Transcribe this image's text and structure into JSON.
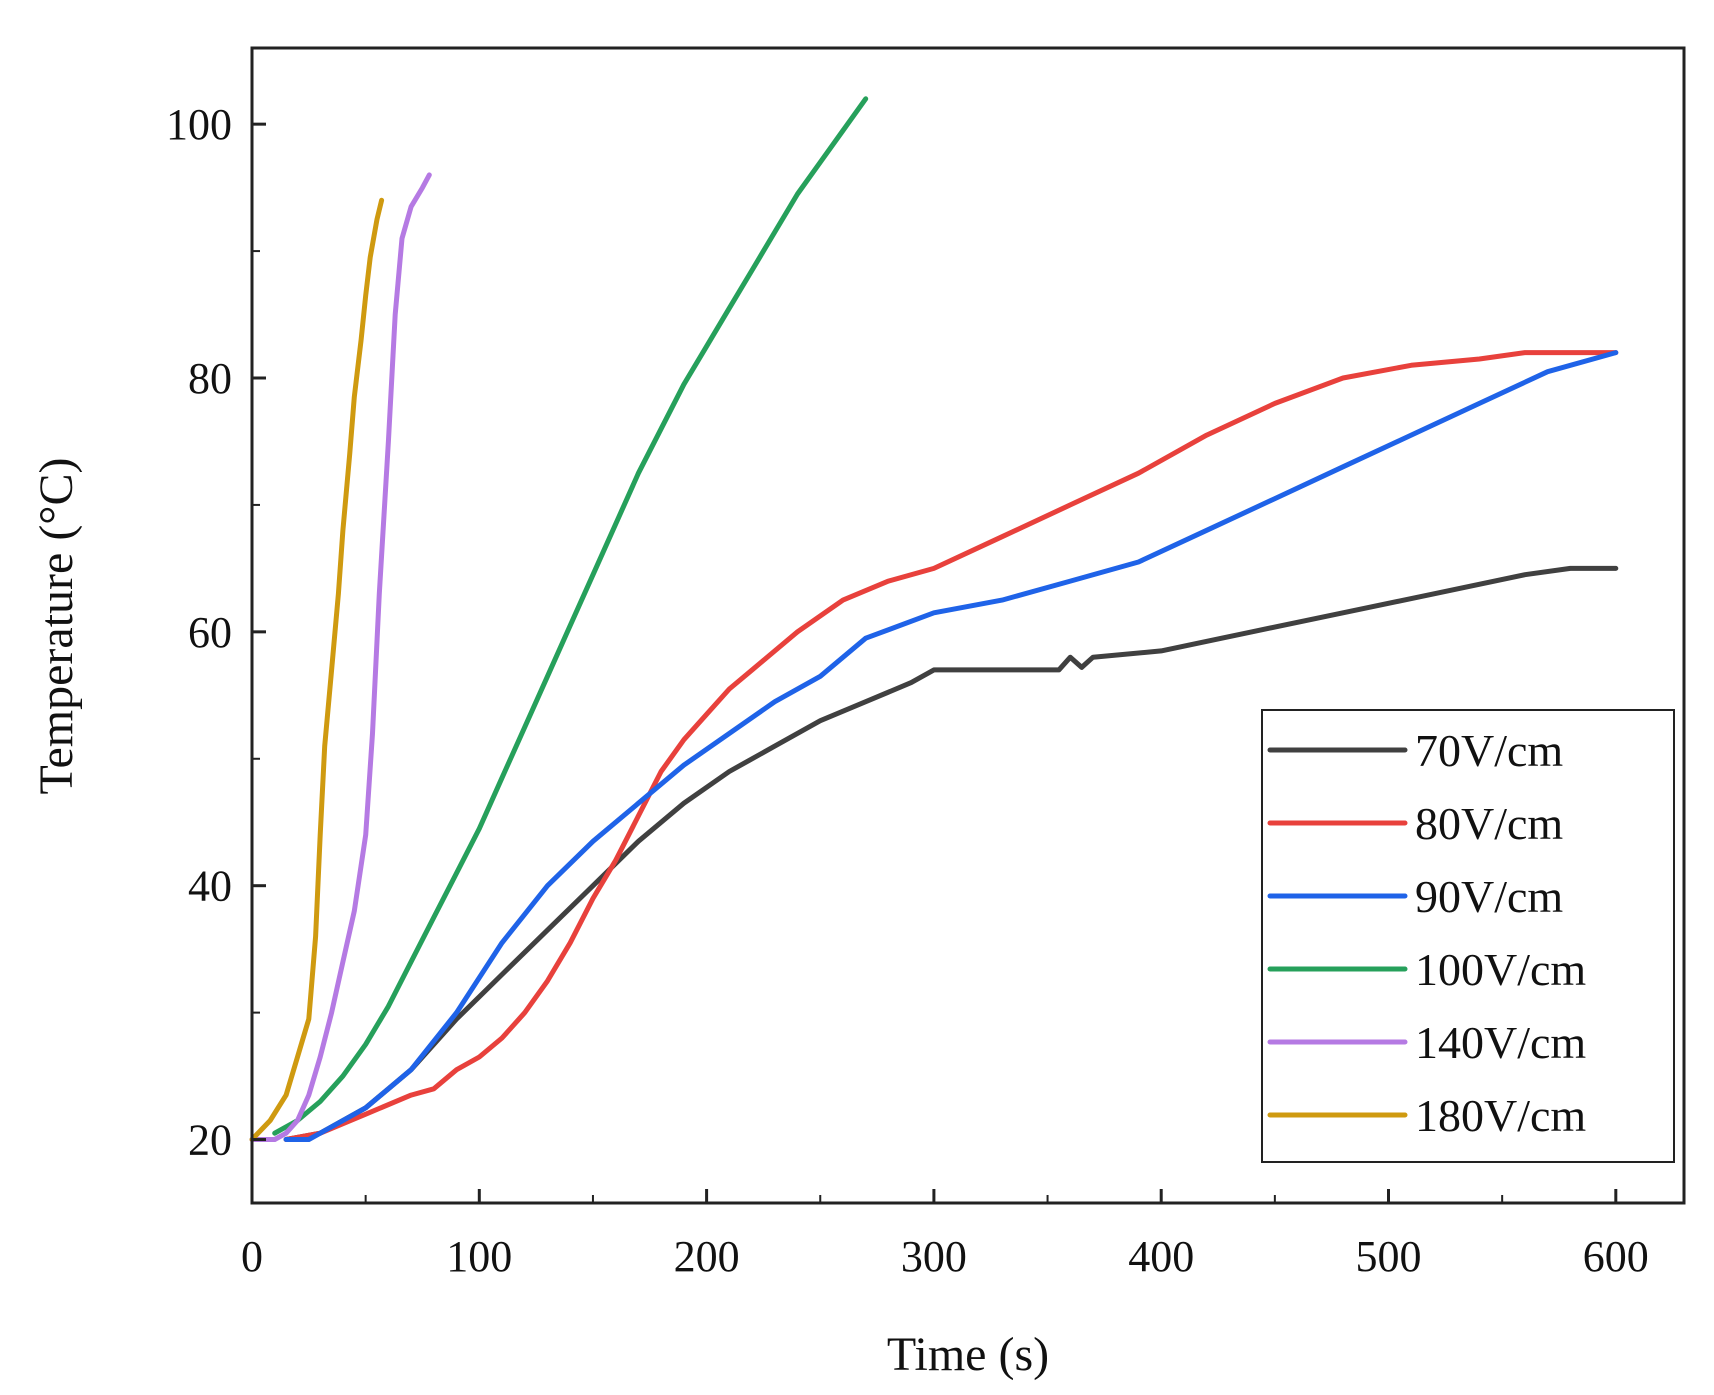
{
  "chart_data": {
    "type": "line",
    "title": "",
    "xlabel": "Time (s)",
    "ylabel": "Temperature (°C)",
    "xlim": [
      0,
      630
    ],
    "ylim": [
      15,
      106
    ],
    "xticks": [
      0,
      100,
      200,
      300,
      400,
      500,
      600
    ],
    "xtick_labels": [
      "0",
      "100",
      "200",
      "300",
      "400",
      "500",
      "600"
    ],
    "yticks": [
      20,
      40,
      60,
      80,
      100
    ],
    "ytick_labels": [
      "20",
      "40",
      "60",
      "80",
      "100"
    ],
    "x_minor_step": 50,
    "y_minor_step": 10,
    "grid": false,
    "legend_position": "lower-right",
    "series": [
      {
        "name": "70V/cm",
        "color": "#404040",
        "x": [
          15,
          30,
          50,
          70,
          90,
          110,
          130,
          150,
          170,
          190,
          210,
          230,
          250,
          270,
          290,
          300,
          330,
          355,
          360,
          365,
          370,
          400,
          440,
          480,
          520,
          560,
          580,
          600
        ],
        "y": [
          20,
          20.5,
          22.5,
          25.5,
          29.5,
          33,
          36.5,
          40,
          43.5,
          46.5,
          49,
          51,
          53,
          54.5,
          56,
          57,
          57,
          57,
          58,
          57.2,
          58,
          58.5,
          60,
          61.5,
          63,
          64.5,
          65,
          65
        ]
      },
      {
        "name": "80V/cm",
        "color": "#e8413c",
        "x": [
          15,
          30,
          50,
          70,
          80,
          90,
          100,
          110,
          120,
          130,
          140,
          150,
          160,
          170,
          180,
          190,
          200,
          210,
          220,
          240,
          260,
          280,
          300,
          330,
          360,
          390,
          420,
          450,
          480,
          510,
          540,
          560,
          580,
          600
        ],
        "y": [
          20,
          20.5,
          22,
          23.5,
          24,
          25.5,
          26.5,
          28,
          30,
          32.5,
          35.5,
          39,
          42,
          45.5,
          49,
          51.5,
          53.5,
          55.5,
          57,
          60,
          62.5,
          64,
          65,
          67.5,
          70,
          72.5,
          75.5,
          78,
          80,
          81,
          81.5,
          82,
          82,
          82
        ]
      },
      {
        "name": "90V/cm",
        "color": "#1f63e8",
        "x": [
          15,
          25,
          30,
          50,
          70,
          90,
          110,
          130,
          150,
          170,
          190,
          210,
          230,
          250,
          270,
          300,
          330,
          360,
          390,
          420,
          450,
          480,
          510,
          540,
          570,
          600
        ],
        "y": [
          20,
          20,
          20.5,
          22.5,
          25.5,
          30,
          35.5,
          40,
          43.5,
          46.5,
          49.5,
          52,
          54.5,
          56.5,
          59.5,
          61.5,
          62.5,
          64,
          65.5,
          68,
          70.5,
          73,
          75.5,
          78,
          80.5,
          82
        ]
      },
      {
        "name": "100V/cm",
        "color": "#26a05b",
        "x": [
          10,
          20,
          30,
          40,
          50,
          60,
          70,
          80,
          90,
          100,
          110,
          120,
          130,
          140,
          150,
          160,
          170,
          180,
          190,
          200,
          210,
          220,
          230,
          240,
          250,
          260,
          270
        ],
        "y": [
          20.5,
          21.5,
          23,
          25,
          27.5,
          30.5,
          34,
          37.5,
          41,
          44.5,
          48.5,
          52.5,
          56.5,
          60.5,
          64.5,
          68.5,
          72.5,
          76,
          79.5,
          82.5,
          85.5,
          88.5,
          91.5,
          94.5,
          97,
          99.5,
          102
        ]
      },
      {
        "name": "140V/cm",
        "color": "#b57ae3",
        "x": [
          0,
          10,
          15,
          20,
          25,
          30,
          35,
          40,
          45,
          50,
          53,
          56,
          60,
          63,
          66,
          70,
          75,
          78
        ],
        "y": [
          20,
          20,
          20.5,
          21.5,
          23.5,
          26.5,
          30,
          34,
          38,
          44,
          52,
          63,
          75,
          85,
          91,
          93.5,
          95,
          96
        ]
      },
      {
        "name": "180V/cm",
        "color": "#cf9a10",
        "x": [
          0,
          8,
          15,
          20,
          25,
          28,
          30,
          32,
          35,
          38,
          40,
          43,
          45,
          48,
          50,
          52,
          55,
          57
        ],
        "y": [
          20,
          21.5,
          23.5,
          26.5,
          29.5,
          36,
          44,
          51,
          57,
          63,
          68,
          74,
          78.5,
          83,
          86.5,
          89.5,
          92.5,
          94
        ]
      }
    ]
  }
}
